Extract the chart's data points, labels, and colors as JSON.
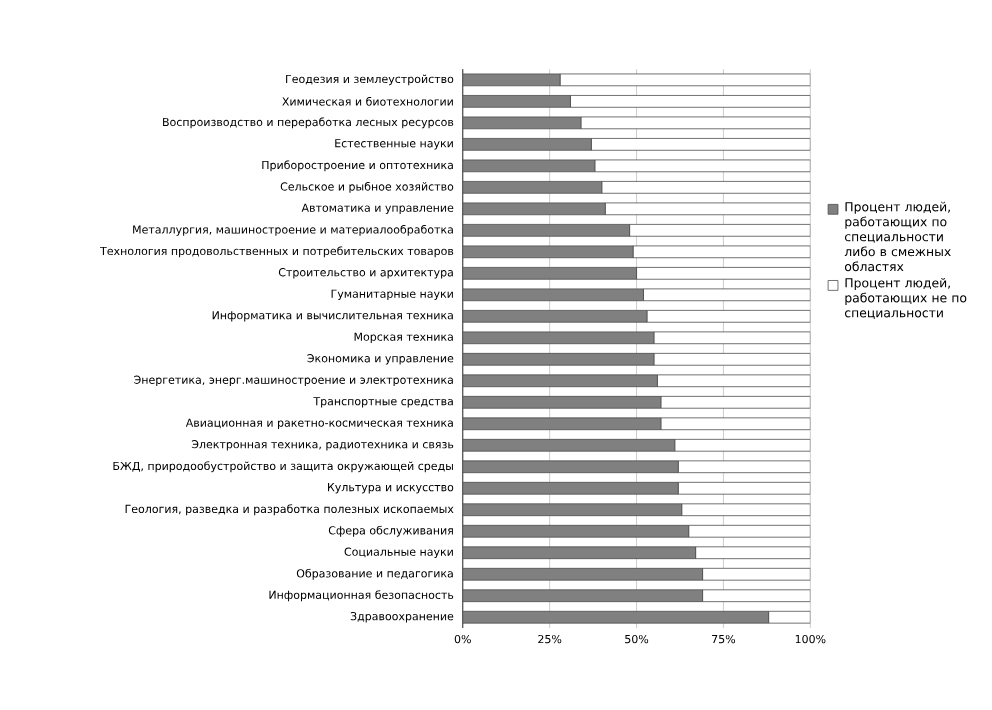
{
  "chart_data": {
    "type": "bar",
    "orientation": "horizontal",
    "stacked": true,
    "categories": [
      "Геодезия и землеустройство",
      "Химическая и биотехнологии",
      "Воспроизводство и переработка лесных ресурсов",
      "Естественные науки",
      "Приборостроение и оптотехника",
      "Сельское и рыбное хозяйство",
      "Автоматика и управление",
      "Металлургия, машиностроение и материалообработка",
      "Технология продовольственных и потребительских товаров",
      "Строительство и архитектура",
      "Гуманитарные науки",
      "Информатика и вычислительная техника",
      "Морская техника",
      "Экономика и управление",
      "Энергетика, энерг.машиностроение и электротехника",
      "Транспортные средства",
      "Авиационная и ракетно-космическая техника",
      "Электронная техника, радиотехника и связь",
      "БЖД, природообустройство и защита окружающей среды",
      "Культура и искусство",
      "Геология, разведка и разработка полезных ископаемых",
      "Сфера обслуживания",
      "Социальные науки",
      "Образование и педагогика",
      "Информационная безопасность",
      "Здравоохранение"
    ],
    "series": [
      {
        "name": "Процент людей, работающих по специальности либо в смежных областях",
        "color": "#808080",
        "values": [
          28,
          31,
          34,
          37,
          38,
          40,
          41,
          48,
          49,
          50,
          52,
          53,
          55,
          55,
          56,
          57,
          57,
          61,
          62,
          62,
          63,
          65,
          67,
          69,
          69,
          88
        ]
      },
      {
        "name": "Процент людей, работающих не по специальности",
        "color": "#ffffff",
        "values": [
          72,
          69,
          66,
          63,
          62,
          60,
          59,
          52,
          51,
          50,
          48,
          47,
          45,
          45,
          44,
          43,
          43,
          39,
          38,
          38,
          37,
          35,
          33,
          31,
          31,
          12
        ]
      }
    ],
    "xlim": [
      0,
      100
    ],
    "xticks": [
      {
        "value": 0,
        "label": "0%"
      },
      {
        "value": 25,
        "label": "25%"
      },
      {
        "value": 50,
        "label": "50%"
      },
      {
        "value": 75,
        "label": "75%"
      },
      {
        "value": 100,
        "label": "100%"
      }
    ],
    "grid": "x",
    "legend": "right"
  }
}
